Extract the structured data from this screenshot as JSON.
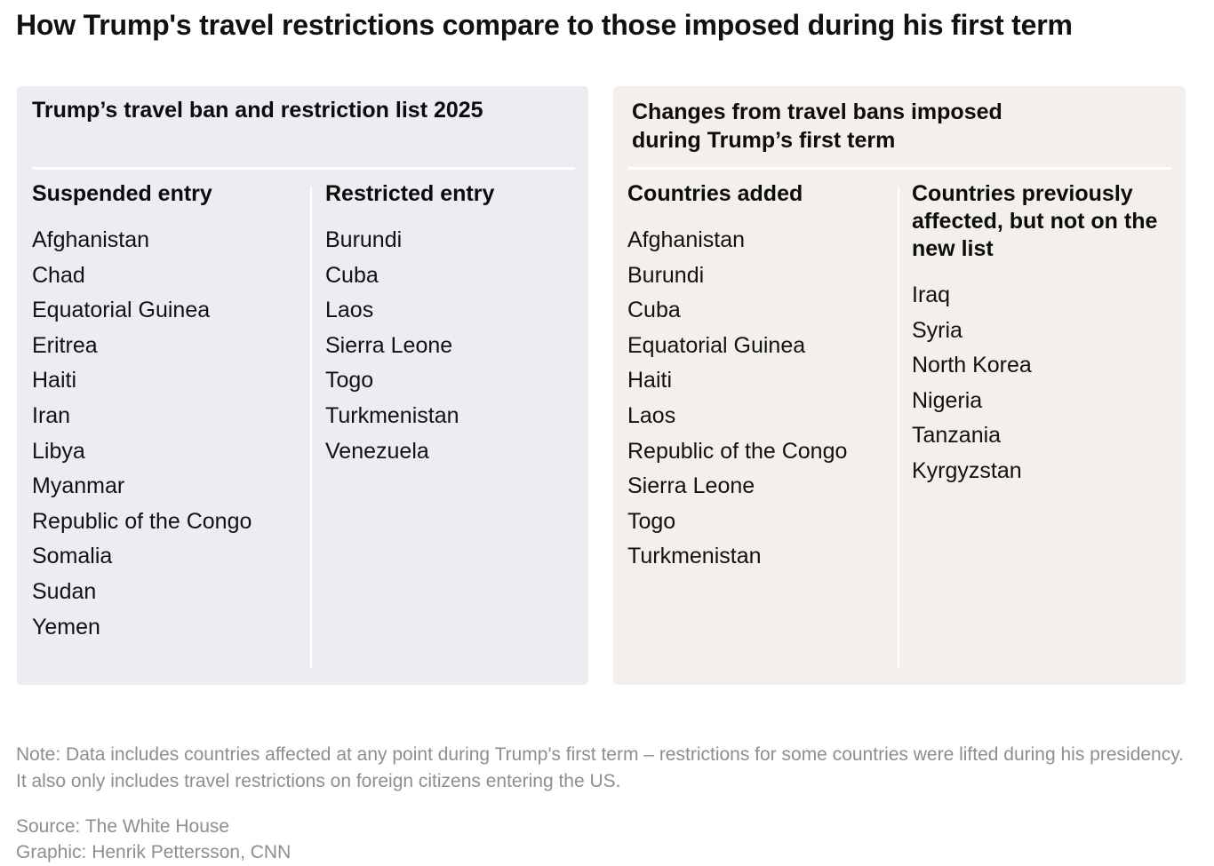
{
  "title": "How Trump's travel restrictions compare to those imposed during his first term",
  "left_panel": {
    "title": "Trump’s travel ban and restriction list 2025",
    "suspended": {
      "heading": "Suspended entry",
      "countries": [
        "Afghanistan",
        "Chad",
        "Equatorial Guinea",
        "Eritrea",
        "Haiti",
        "Iran",
        "Libya",
        "Myanmar",
        "Republic of the Congo",
        "Somalia",
        "Sudan",
        "Yemen"
      ]
    },
    "restricted": {
      "heading": "Restricted entry",
      "countries": [
        "Burundi",
        "Cuba",
        "Laos",
        "Sierra Leone",
        "Togo",
        "Turkmenistan",
        "Venezuela"
      ]
    }
  },
  "right_panel": {
    "title_line1": "Changes from travel bans imposed",
    "title_line2": "during Trump’s first term",
    "added": {
      "heading": "Countries added",
      "countries": [
        "Afghanistan",
        "Burundi",
        "Cuba",
        "Equatorial Guinea",
        "Haiti",
        "Laos",
        "Republic of the Congo",
        "Sierra Leone",
        "Togo",
        "Turkmenistan"
      ]
    },
    "removed": {
      "heading": "Countries previously affected, but not on the new list",
      "countries": [
        "Iraq",
        "Syria",
        "North Korea",
        "Nigeria",
        "Tanzania",
        "Kyrgyzstan"
      ]
    }
  },
  "note": "Note: Data includes countries affected at any point during Trump's first term – restrictions for some countries were lifted during his presidency. It also only includes travel restrictions on foreign citizens entering the US.",
  "source": "Source: The White House",
  "credit": "Graphic: Henrik Pettersson, CNN",
  "colors": {
    "left_panel_bg": "#edecf2",
    "right_panel_bg": "#f3efea",
    "footer_text": "#8e8e8e"
  }
}
